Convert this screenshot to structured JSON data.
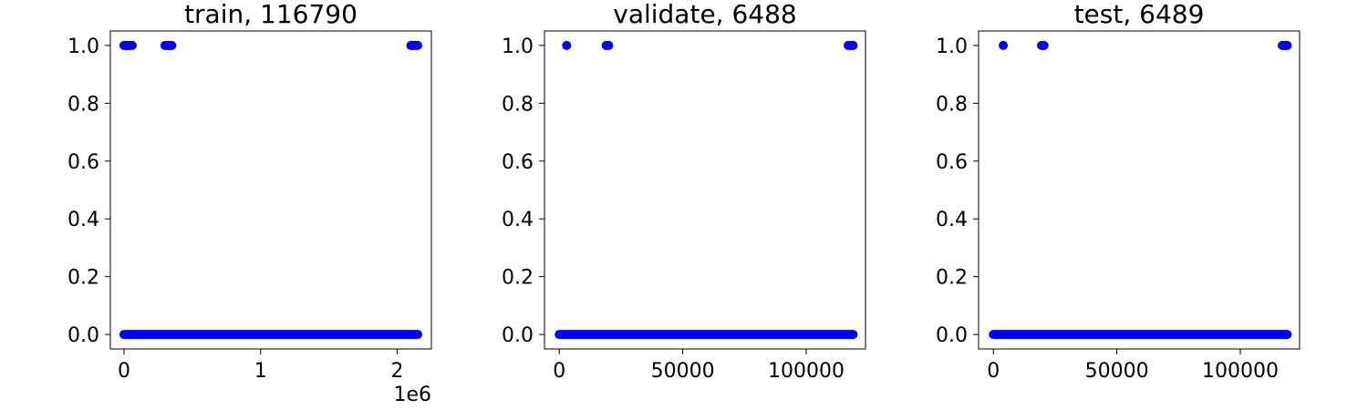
{
  "chart_data": [
    {
      "type": "scatter",
      "title": "train, 116790",
      "xlabel": "",
      "ylabel": "",
      "xlim": [
        -100000,
        2250000
      ],
      "ylim": [
        -0.05,
        1.05
      ],
      "x_offset_label": "1e6",
      "xticks": [
        0,
        1000000,
        2000000
      ],
      "xtick_labels": [
        "0",
        "1",
        "2"
      ],
      "yticks": [
        0.0,
        0.2,
        0.4,
        0.6,
        0.8,
        1.0
      ],
      "ytick_labels": [
        "0.0",
        "0.2",
        "0.4",
        "0.6",
        "0.8",
        "1.0"
      ],
      "color": "#0000ff",
      "series": [
        {
          "points_y1_x": [
            0,
            10000,
            20000,
            30000,
            40000,
            50000,
            60000,
            300000,
            310000,
            320000,
            330000,
            340000,
            350000,
            2100000,
            2110000,
            2120000,
            2130000,
            2140000,
            2150000
          ],
          "y0_x_range": [
            0,
            2150000
          ]
        }
      ]
    },
    {
      "type": "scatter",
      "title": "validate, 6488",
      "xlabel": "",
      "ylabel": "",
      "xlim": [
        -6000,
        124000
      ],
      "ylim": [
        -0.05,
        1.05
      ],
      "xticks": [
        0,
        50000,
        100000
      ],
      "xtick_labels": [
        "0",
        "50000",
        "100000"
      ],
      "yticks": [
        0.0,
        0.2,
        0.4,
        0.6,
        0.8,
        1.0
      ],
      "ytick_labels": [
        "0.0",
        "0.2",
        "0.4",
        "0.6",
        "0.8",
        "1.0"
      ],
      "color": "#0000ff",
      "series": [
        {
          "points_y1_x": [
            3000,
            19000,
            19500,
            20000,
            117000,
            117500,
            118000,
            118500,
            119000
          ],
          "y0_x_range": [
            0,
            119000
          ]
        }
      ]
    },
    {
      "type": "scatter",
      "title": "test, 6489",
      "xlabel": "",
      "ylabel": "",
      "xlim": [
        -6000,
        124000
      ],
      "ylim": [
        -0.05,
        1.05
      ],
      "xticks": [
        0,
        50000,
        100000
      ],
      "xtick_labels": [
        "0",
        "50000",
        "100000"
      ],
      "yticks": [
        0.0,
        0.2,
        0.4,
        0.6,
        0.8,
        1.0
      ],
      "ytick_labels": [
        "0.0",
        "0.2",
        "0.4",
        "0.6",
        "0.8",
        "1.0"
      ],
      "color": "#0000ff",
      "series": [
        {
          "points_y1_x": [
            4000,
            19500,
            20000,
            20500,
            117000,
            117500,
            118000,
            118500,
            119000
          ],
          "y0_x_range": [
            0,
            119000
          ]
        }
      ]
    }
  ]
}
